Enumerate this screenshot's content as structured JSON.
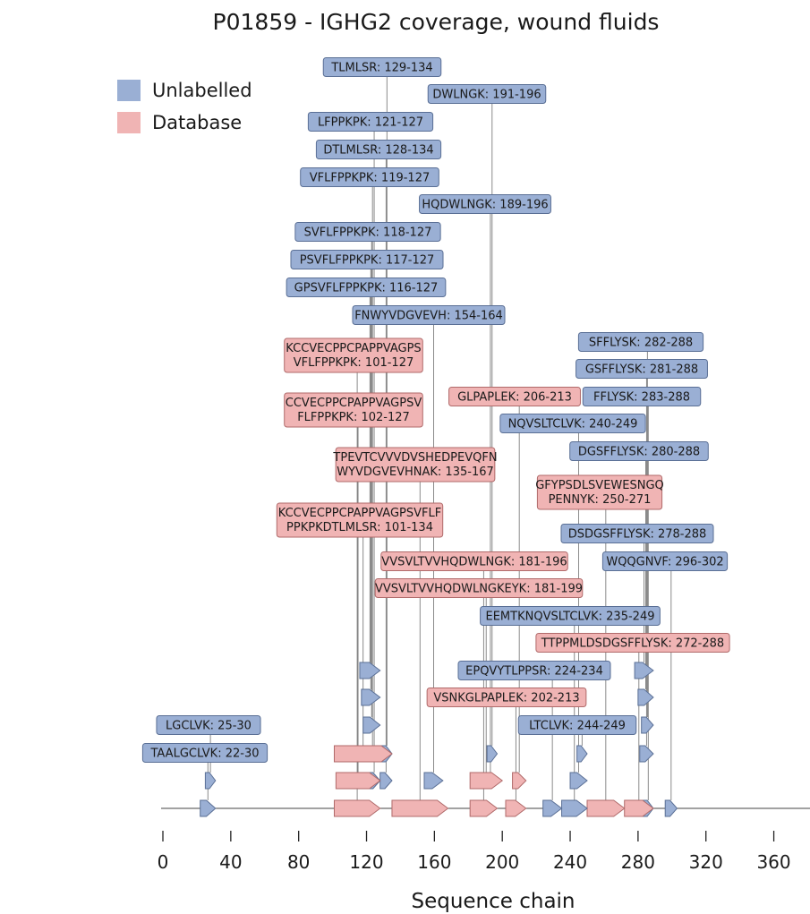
{
  "chart_data": {
    "type": "sequence-coverage",
    "title": "P01859 - IGHG2 coverage, wound fluids",
    "xlabel": "Sequence chain",
    "xlim": [
      0,
      383
    ],
    "xticks": [
      0,
      40,
      80,
      120,
      160,
      200,
      240,
      280,
      320,
      360
    ],
    "xtick_labels": [
      "0",
      "40",
      "80",
      "120",
      "160",
      "200",
      "240",
      "280",
      "320",
      "360"
    ],
    "legend": [
      {
        "name": "Unlabelled",
        "color": "#9aafd4"
      },
      {
        "name": "Database",
        "color": "#f0b4b4"
      }
    ],
    "peptides": [
      {
        "label": "TLMLSR: 129-134",
        "start": 129,
        "end": 134,
        "series": "Unlabelled"
      },
      {
        "label": "DWLNGK: 191-196",
        "start": 191,
        "end": 196,
        "series": "Unlabelled"
      },
      {
        "label": "LFPPKPK: 121-127",
        "start": 121,
        "end": 127,
        "series": "Unlabelled"
      },
      {
        "label": "DTLMLSR: 128-134",
        "start": 128,
        "end": 134,
        "series": "Unlabelled"
      },
      {
        "label": "VFLFPPKPK: 119-127",
        "start": 119,
        "end": 127,
        "series": "Unlabelled"
      },
      {
        "label": "HQDWLNGK: 189-196",
        "start": 189,
        "end": 196,
        "series": "Unlabelled"
      },
      {
        "label": "SVFLFPPKPK: 118-127",
        "start": 118,
        "end": 127,
        "series": "Unlabelled"
      },
      {
        "label": "PSVFLFPPKPK: 117-127",
        "start": 117,
        "end": 127,
        "series": "Unlabelled"
      },
      {
        "label": "GPSVFLFPPKPK: 116-127",
        "start": 116,
        "end": 127,
        "series": "Unlabelled"
      },
      {
        "label": "FNWYVDGVEVH: 154-164",
        "start": 154,
        "end": 164,
        "series": "Unlabelled"
      },
      {
        "label": "SFFLYSK: 282-288",
        "start": 282,
        "end": 288,
        "series": "Unlabelled"
      },
      {
        "label": "KCCVECPPCPAPPVAGPS\nVFLFPPKPK: 101-127",
        "start": 101,
        "end": 127,
        "series": "Database"
      },
      {
        "label": "GSFFLYSK: 281-288",
        "start": 281,
        "end": 288,
        "series": "Unlabelled"
      },
      {
        "label": "GLPAPLEK: 206-213",
        "start": 206,
        "end": 213,
        "series": "Database"
      },
      {
        "label": "FFLYSK: 283-288",
        "start": 283,
        "end": 288,
        "series": "Unlabelled"
      },
      {
        "label": "CCVECPPCPAPPVAGPSV\nFLFPPKPK: 102-127",
        "start": 102,
        "end": 127,
        "series": "Database"
      },
      {
        "label": "NQVSLTCLVK: 240-249",
        "start": 240,
        "end": 249,
        "series": "Unlabelled"
      },
      {
        "label": "DGSFFLYSK: 280-288",
        "start": 280,
        "end": 288,
        "series": "Unlabelled"
      },
      {
        "label": "TPEVTCVVVDVSHEDPEVQFN\nWYVDGVEVHNAK: 135-167",
        "start": 135,
        "end": 167,
        "series": "Database"
      },
      {
        "label": "GFYPSDLSVEWESNGQ\nPENNYK: 250-271",
        "start": 250,
        "end": 271,
        "series": "Database"
      },
      {
        "label": "KCCVECPPCPAPPVAGPSVFLF\nPPKPKDTLMLSR: 101-134",
        "start": 101,
        "end": 134,
        "series": "Database"
      },
      {
        "label": "DSDGSFFLYSK: 278-288",
        "start": 278,
        "end": 288,
        "series": "Unlabelled"
      },
      {
        "label": "VVSVLTVVHQDWLNGK: 181-196",
        "start": 181,
        "end": 196,
        "series": "Database"
      },
      {
        "label": "WQQGNVF: 296-302",
        "start": 296,
        "end": 302,
        "series": "Unlabelled"
      },
      {
        "label": "VVSVLTVVHQDWLNGKEYK: 181-199",
        "start": 181,
        "end": 199,
        "series": "Database"
      },
      {
        "label": "EEMTKNQVSLTCLVK: 235-249",
        "start": 235,
        "end": 249,
        "series": "Unlabelled"
      },
      {
        "label": "TTPPMLDSDGSFFLYSK: 272-288",
        "start": 272,
        "end": 288,
        "series": "Database"
      },
      {
        "label": "EPQVYTLPPSR: 224-234",
        "start": 224,
        "end": 234,
        "series": "Unlabelled"
      },
      {
        "label": "VSNKGLPAPLEK: 202-213",
        "start": 202,
        "end": 213,
        "series": "Database"
      },
      {
        "label": "LGCLVK: 25-30",
        "start": 25,
        "end": 30,
        "series": "Unlabelled"
      },
      {
        "label": "LTCLVK: 244-249",
        "start": 244,
        "end": 249,
        "series": "Unlabelled"
      },
      {
        "label": "TAALGCLVK: 22-30",
        "start": 22,
        "end": 30,
        "series": "Unlabelled"
      }
    ]
  }
}
